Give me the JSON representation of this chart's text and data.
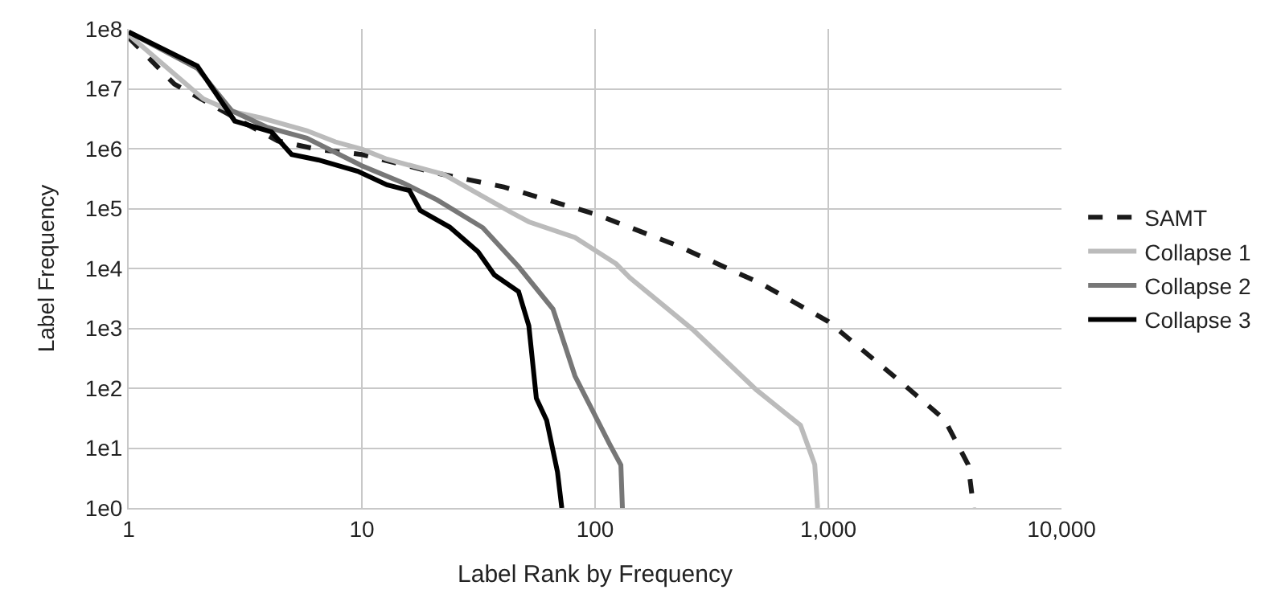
{
  "chart_data": {
    "type": "line",
    "xlabel": "Label Rank by Frequency",
    "ylabel": "Label Frequency",
    "log": "xy",
    "grid": true,
    "legend": "right",
    "marker": "none",
    "xlim": [
      1,
      10000
    ],
    "ylim": [
      1,
      100000000
    ],
    "xticks": [
      1,
      10,
      100,
      {
        "value": 1000,
        "label": "1,000"
      },
      {
        "value": 10000,
        "label": "10,000"
      }
    ],
    "yticks": [
      {
        "value": 1,
        "label": "1e0"
      },
      {
        "value": 10,
        "label": "1e1"
      },
      {
        "value": 100,
        "label": "1e2"
      },
      {
        "value": 1000,
        "label": "1e3"
      },
      {
        "value": 10000,
        "label": "1e4"
      },
      {
        "value": 100000,
        "label": "1e5"
      },
      {
        "value": 1000000,
        "label": "1e6"
      },
      {
        "value": 10000000,
        "label": "1e7"
      },
      {
        "value": 100000000,
        "label": "1e8"
      }
    ],
    "series": [
      {
        "name": "SAMT",
        "color": "#1a1a1a",
        "line_style": "dashed",
        "x": [
          1,
          1.57,
          2.77,
          4.36,
          6.5,
          10,
          21,
          40.6,
          100,
          220,
          515,
          1000,
          2100,
          3150,
          3980,
          4200
        ],
        "values": [
          72000000,
          12000000,
          3500000,
          1350000,
          970000,
          800000,
          390000,
          230000,
          81000,
          25000,
          5600,
          1300,
          117,
          30,
          5.3,
          1
        ]
      },
      {
        "name": "Collapse 1",
        "color": "#bbbbbb",
        "line_style": "solid",
        "x": [
          1,
          2.09,
          2.77,
          3.67,
          5.8,
          7.7,
          10,
          12.8,
          22.5,
          44,
          52,
          82,
          123,
          141,
          262,
          490,
          760,
          875,
          900
        ],
        "values": [
          80000000,
          6800000,
          4200000,
          3300000,
          2000000,
          1300000,
          980000,
          670000,
          370000,
          85000,
          60000,
          33000,
          12000,
          7000,
          960,
          95,
          24,
          5.3,
          1
        ]
      },
      {
        "name": "Collapse 2",
        "color": "#777777",
        "line_style": "solid",
        "x": [
          1,
          1.97,
          2.77,
          3.9,
          5.8,
          10,
          15,
          21,
          33,
          47,
          66,
          82,
          115,
          129,
          131
        ],
        "values": [
          89000000,
          22000000,
          4300000,
          2300000,
          1500000,
          520000,
          270000,
          140000,
          48000,
          10700,
          2100,
          160,
          12,
          5.2,
          1
        ]
      },
      {
        "name": "Collapse 3",
        "color": "#000000",
        "line_style": "solid",
        "x": [
          1,
          1.97,
          2.85,
          4.1,
          5.0,
          6.5,
          9.6,
          12.8,
          16,
          17.8,
          23.8,
          31.5,
          37,
          47,
          52,
          56,
          62,
          69,
          72
        ],
        "values": [
          89000000,
          24000000,
          2900000,
          1900000,
          800000,
          650000,
          420000,
          250000,
          200000,
          93000,
          49000,
          19000,
          7800,
          4100,
          1100,
          68,
          29,
          4,
          1
        ]
      }
    ]
  }
}
